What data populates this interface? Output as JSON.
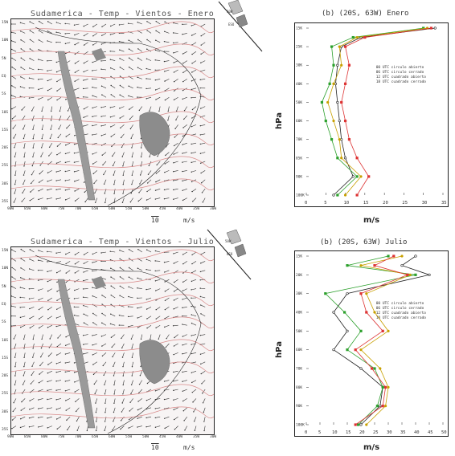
{
  "panels": [
    {
      "map_title": "Sudamerica - Temp - Vientos - Enero",
      "lat_labels": [
        "15N",
        "10N",
        "5N",
        "EQ",
        "5S",
        "10S",
        "15S",
        "20S",
        "25S",
        "30S",
        "35S"
      ],
      "lon_labels": [
        "90W",
        "85W",
        "80W",
        "75W",
        "70W",
        "65W",
        "60W",
        "55W",
        "50W",
        "45W",
        "40W",
        "35W",
        "30W"
      ],
      "vector_ref_value": "10",
      "vector_ref_unit": "m/s",
      "inset_labels": [
        "50W",
        "ESO"
      ]
    },
    {
      "map_title": "Sudamerica - Temp - Vientos - Julio",
      "lat_labels": [
        "15N",
        "10N",
        "5N",
        "EQ",
        "5S",
        "10S",
        "15S",
        "20S",
        "25S",
        "30S",
        "35S"
      ],
      "lon_labels": [
        "90W",
        "85W",
        "80W",
        "75W",
        "70W",
        "65W",
        "60W",
        "55W",
        "50W",
        "45W",
        "40W",
        "35W",
        "30W"
      ],
      "vector_ref_value": "10",
      "vector_ref_unit": "m/s",
      "inset_labels": [
        "50W",
        "ESO"
      ]
    }
  ],
  "chart_data": [
    {
      "type": "line",
      "title": "(b)  (20S, 63W)  Enero",
      "xlabel": "m/s",
      "ylabel": "hPa",
      "xlim": [
        0,
        35
      ],
      "x_ticks": [
        "0",
        "5",
        "10",
        "15",
        "20",
        "25",
        "30",
        "35"
      ],
      "y_ticks": [
        "15K",
        "25K",
        "30K",
        "40K",
        "50K",
        "60K",
        "70K",
        "85K",
        "90K",
        "100K"
      ],
      "y_levels": [
        0,
        0.5,
        1,
        2,
        3,
        4,
        5,
        6,
        7,
        8,
        9
      ],
      "legend": [
        "00 UTC circulo abierto",
        "06 UTC circulo cerrado",
        "12 UTC cuadrado abierto",
        "18 UTC cuadrado cerrado"
      ],
      "series": [
        {
          "name": "00 UTC circulo abierto",
          "color": "#222222",
          "values": [
            33,
            14,
            9,
            8,
            7.5,
            8,
            8.5,
            9,
            10,
            12,
            7
          ]
        },
        {
          "name": "06 UTC circulo cerrado",
          "color": "#2ca02c",
          "values": [
            30,
            12,
            6.5,
            7,
            6,
            4,
            5,
            6.5,
            8,
            13,
            8
          ]
        },
        {
          "name": "12 UTC cuadrado abierto",
          "color": "#c8a000",
          "values": [
            31,
            13,
            8.5,
            9,
            7,
            5.5,
            7,
            8.5,
            9,
            14,
            10
          ]
        },
        {
          "name": "18 UTC cuadrado cerrado",
          "color": "#dd3333",
          "values": [
            32,
            15,
            10,
            11,
            10,
            9,
            10,
            11,
            13,
            16,
            13
          ]
        }
      ]
    },
    {
      "type": "line",
      "title": "(b)  (20S, 63W)  Julio",
      "xlabel": "m/s",
      "ylabel": "hPa",
      "xlim": [
        0,
        50
      ],
      "x_ticks": [
        "0",
        "5",
        "10",
        "15",
        "20",
        "25",
        "30",
        "35",
        "40",
        "45",
        "50"
      ],
      "y_ticks": [
        "15K",
        "20K",
        "30K",
        "40K",
        "50K",
        "60K",
        "70K",
        "80K",
        "90K",
        "100K"
      ],
      "y_levels": [
        0,
        0.5,
        1,
        2,
        3,
        4,
        5,
        6,
        7,
        8,
        9
      ],
      "legend": [
        "00 UTC circulo abierto",
        "06 UTC circulo cerrado",
        "12 UTC cuadrado abierto",
        "18 UTC cuadrado cerrado"
      ],
      "series": [
        {
          "name": "00 UTC circulo abierto",
          "color": "#222222",
          "values": [
            40,
            35,
            45,
            15,
            10,
            15,
            10,
            20,
            28,
            27,
            20
          ]
        },
        {
          "name": "06 UTC circulo cerrado",
          "color": "#2ca02c",
          "values": [
            30,
            15,
            40,
            7,
            14,
            20,
            15,
            25,
            28,
            26,
            19
          ]
        },
        {
          "name": "12 UTC cuadrado abierto",
          "color": "#c8a000",
          "values": [
            35,
            20,
            38,
            22,
            25,
            30,
            20,
            27,
            30,
            29,
            22
          ]
        },
        {
          "name": "18 UTC cuadrado cerrado",
          "color": "#dd3333",
          "values": [
            32,
            25,
            37,
            20,
            22,
            28,
            18,
            24,
            29,
            28,
            18
          ]
        }
      ]
    }
  ]
}
